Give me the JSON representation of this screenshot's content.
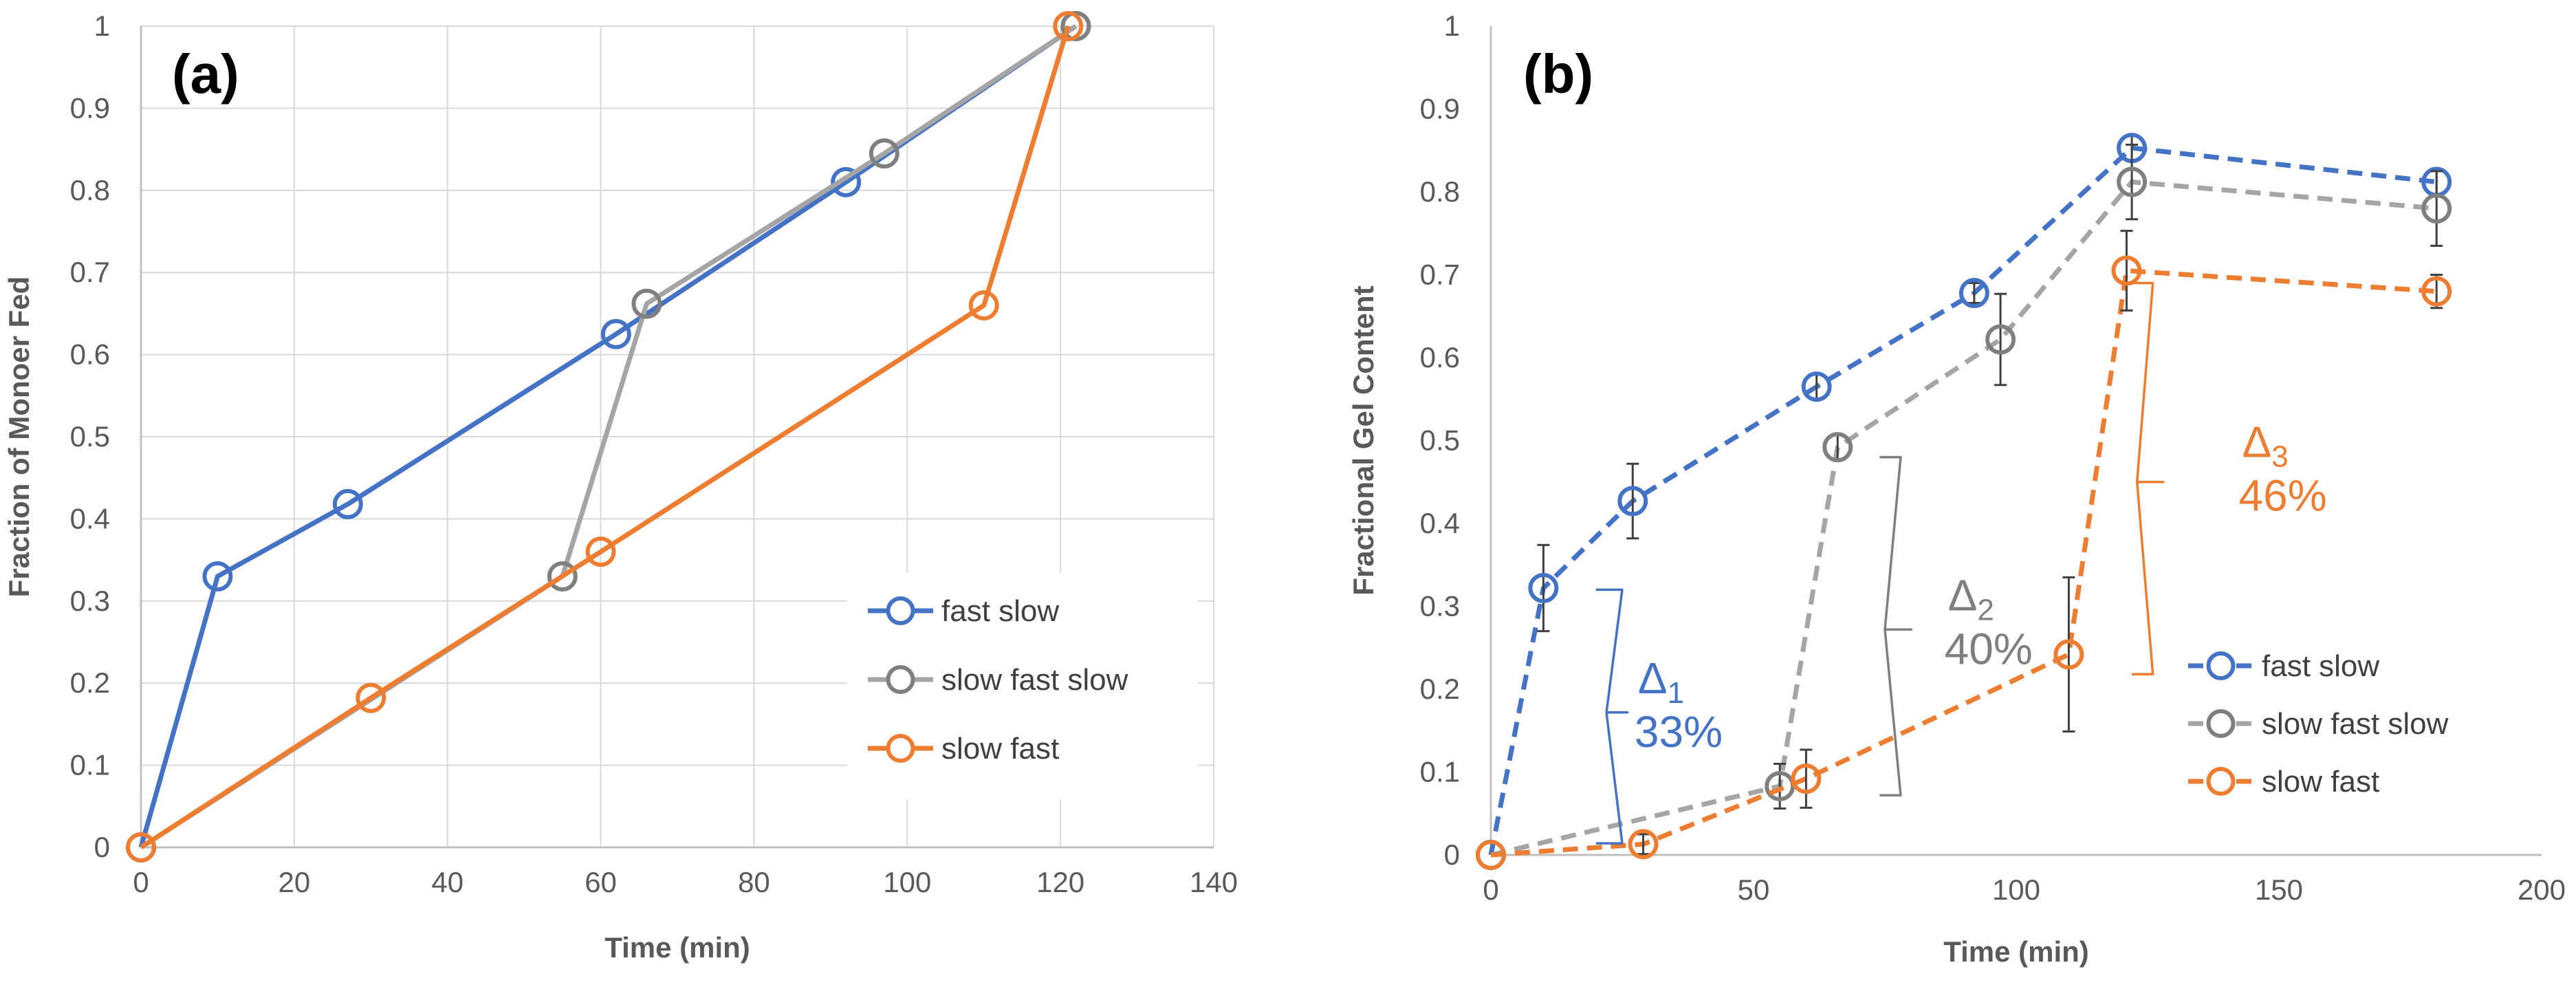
{
  "chart_data": [
    {
      "type": "line",
      "panel_label": "(a)",
      "title": "",
      "xlabel": "Time (min)",
      "ylabel": "Fraction of Monoer Fed",
      "xlim": [
        0,
        140
      ],
      "ylim": [
        0,
        1
      ],
      "xticks": [
        0,
        20,
        40,
        60,
        80,
        100,
        120,
        140
      ],
      "xtick_labels": [
        "0",
        "20",
        "40",
        "60",
        "80",
        "100",
        "120",
        "140"
      ],
      "yticks": [
        0,
        0.1,
        0.2,
        0.3,
        0.4,
        0.5,
        0.6,
        0.7,
        0.8,
        0.9,
        1
      ],
      "ytick_labels": [
        "0",
        "0.1",
        "0.2",
        "0.3",
        "0.4",
        "0.5",
        "0.6",
        "0.7",
        "0.8",
        "0.9",
        "1"
      ],
      "grid": true,
      "legend_position": "bottom-right",
      "series": [
        {
          "name": "fast slow",
          "color": "#4472C4",
          "dashed": false,
          "points": [
            [
              0,
              0
            ],
            [
              10,
              0.33
            ],
            [
              27,
              0.418
            ],
            [
              62,
              0.625
            ],
            [
              92,
              0.81
            ],
            [
              122,
              1.0
            ]
          ]
        },
        {
          "name": "slow fast slow",
          "color": "#A5A5A5",
          "marker_color": "#7F7F7F",
          "dashed": false,
          "points": [
            [
              0,
              0
            ],
            [
              55,
              0.33
            ],
            [
              66,
              0.662
            ],
            [
              97,
              0.845
            ],
            [
              122,
              1.0
            ]
          ]
        },
        {
          "name": "slow fast",
          "color": "#ED7D31",
          "dashed": false,
          "points": [
            [
              0,
              0
            ],
            [
              30,
              0.182
            ],
            [
              60,
              0.36
            ],
            [
              110,
              0.66
            ],
            [
              121,
              1.0
            ]
          ]
        }
      ],
      "annotations": []
    },
    {
      "type": "line",
      "panel_label": "(b)",
      "title": "",
      "xlabel": "Time (min)",
      "ylabel": "Fractional Gel Content",
      "xlim": [
        0,
        200
      ],
      "ylim": [
        0,
        1
      ],
      "xticks": [
        0,
        50,
        100,
        150,
        200
      ],
      "xtick_labels": [
        "0",
        "50",
        "100",
        "150",
        "200"
      ],
      "yticks": [
        0,
        0.1,
        0.2,
        0.3,
        0.4,
        0.5,
        0.6,
        0.7,
        0.8,
        0.9,
        1
      ],
      "ytick_labels": [
        "0",
        "0.1",
        "0.2",
        "0.3",
        "0.4",
        "0.5",
        "0.6",
        "0.7",
        "0.8",
        "0.9",
        "1"
      ],
      "grid": false,
      "legend_position": "bottom-right",
      "series": [
        {
          "name": "fast slow",
          "color": "#4472C4",
          "dashed": true,
          "points": [
            [
              0,
              0
            ],
            [
              10,
              0.322
            ],
            [
              27,
              0.427
            ],
            [
              62,
              0.565
            ],
            [
              92,
              0.678
            ],
            [
              122,
              0.853
            ],
            [
              180,
              0.812
            ]
          ],
          "errors": [
            0,
            0.052,
            0.045,
            0.015,
            0.012,
            0.015,
            0.015
          ]
        },
        {
          "name": "slow fast slow",
          "color": "#A5A5A5",
          "marker_color": "#7F7F7F",
          "dashed": true,
          "points": [
            [
              0,
              0
            ],
            [
              55,
              0.083
            ],
            [
              66,
              0.492
            ],
            [
              97,
              0.622
            ],
            [
              122,
              0.812
            ],
            [
              180,
              0.78
            ]
          ],
          "errors": [
            0,
            0.027,
            0.015,
            0.055,
            0.045,
            0.045
          ]
        },
        {
          "name": "slow fast",
          "color": "#ED7D31",
          "dashed": true,
          "points": [
            [
              0,
              0
            ],
            [
              29,
              0.013
            ],
            [
              60,
              0.092
            ],
            [
              110,
              0.242
            ],
            [
              121,
              0.705
            ],
            [
              180,
              0.68
            ]
          ],
          "errors": [
            0,
            0.012,
            0.035,
            0.093,
            0.048,
            0.02
          ]
        }
      ],
      "annotations": [
        {
          "name": "delta-1",
          "symbol": "Δ",
          "subscript": "1",
          "value": "33%",
          "color": "#4472C4"
        },
        {
          "name": "delta-2",
          "symbol": "Δ",
          "subscript": "2",
          "value": "40%",
          "color": "#7F7F7F"
        },
        {
          "name": "delta-3",
          "symbol": "Δ",
          "subscript": "3",
          "value": "46%",
          "color": "#ED7D31"
        }
      ]
    }
  ]
}
